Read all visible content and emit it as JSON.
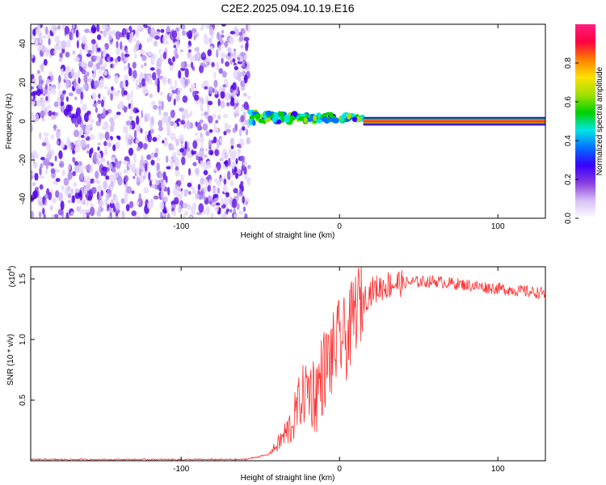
{
  "title": "C2E2.2025.094.10.19.E16",
  "chart_data": [
    {
      "type": "heatmap",
      "xlabel": "Height of straight line (km)",
      "ylabel": "Frequency (Hz)",
      "xlim": [
        -195,
        130
      ],
      "ylim": [
        -50,
        50
      ],
      "x_ticks": [
        -100,
        0,
        100
      ],
      "y_ticks": [
        -40,
        -20,
        0,
        20,
        40
      ],
      "colorbar": {
        "label": "Normalized spectral amplitude",
        "range": [
          0,
          1
        ],
        "ticks": [
          "0.0",
          "0.2",
          "0.4",
          "0.6",
          "0.8"
        ],
        "colormap": [
          "#ffffff",
          "#d7bff5",
          "#8a3ce0",
          "#3a00ff",
          "#0070ff",
          "#00e5e5",
          "#00d000",
          "#a0e000",
          "#ffe000",
          "#ff8000",
          "#ff0040",
          "#ff2080"
        ]
      },
      "regions": [
        {
          "x": [
            -195,
            -57
          ],
          "freq": [
            -50,
            50
          ],
          "description_level": "noise, amplitude 0.05-0.4"
        },
        {
          "x": [
            -57,
            15
          ],
          "freq": [
            -3,
            8
          ],
          "peak_freq": 2,
          "level": 0.5
        },
        {
          "x": [
            15,
            130
          ],
          "freq": [
            -2,
            2
          ],
          "peak_freq": 0,
          "level": 1.0
        }
      ]
    },
    {
      "type": "line",
      "xlabel": "Height of straight line (km)",
      "ylabel": "SNR (10 * v/v)",
      "y_multiplier": "(x10",
      "y_multiplier_exp": "4",
      "y_multiplier_close": ")",
      "xlim": [
        -195,
        130
      ],
      "ylim": [
        0,
        1.6
      ],
      "x_ticks": [
        -100,
        0,
        100
      ],
      "y_ticks": [
        "0.5",
        "1.0",
        "1.5"
      ],
      "color": "#ff3030",
      "series": [
        {
          "x": [
            -195,
            -150,
            -100,
            -60,
            -45,
            -38,
            -30,
            -25,
            -20,
            -15,
            -10,
            -5,
            0,
            5,
            10,
            20,
            30,
            40,
            60,
            80,
            100,
            130
          ],
          "values": [
            0.01,
            0.01,
            0.01,
            0.01,
            0.05,
            0.15,
            0.3,
            0.5,
            0.6,
            0.55,
            0.75,
            0.85,
            1.0,
            1.0,
            1.25,
            1.4,
            1.45,
            1.47,
            1.48,
            1.45,
            1.42,
            1.38
          ]
        }
      ]
    }
  ]
}
